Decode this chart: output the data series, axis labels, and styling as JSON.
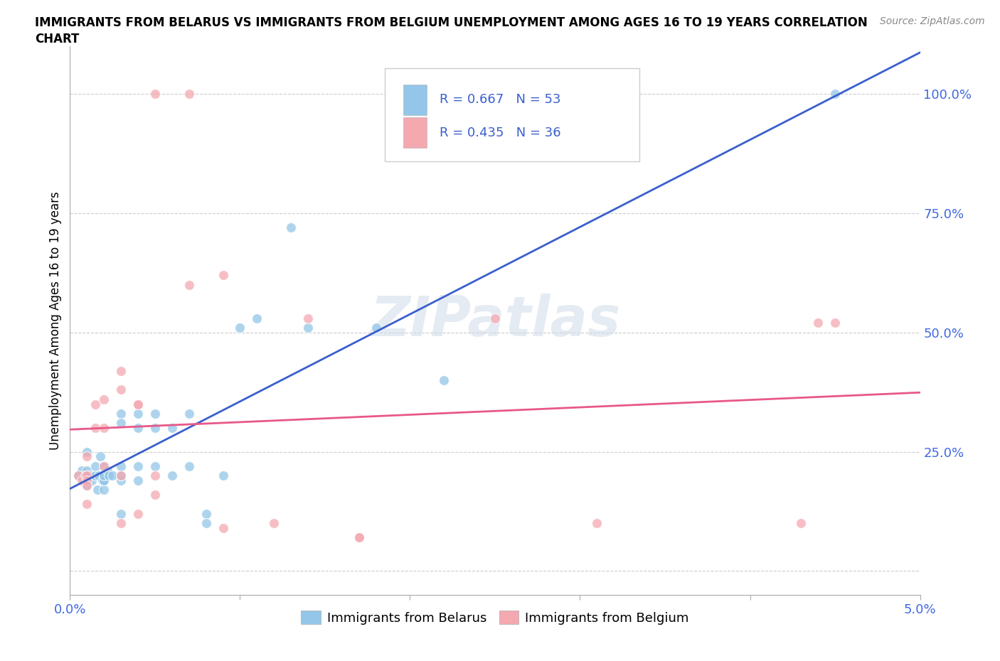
{
  "title_line1": "IMMIGRANTS FROM BELARUS VS IMMIGRANTS FROM BELGIUM UNEMPLOYMENT AMONG AGES 16 TO 19 YEARS CORRELATION",
  "title_line2": "CHART",
  "source": "Source: ZipAtlas.com",
  "ylabel": "Unemployment Among Ages 16 to 19 years",
  "xlim": [
    0.0,
    0.05
  ],
  "ylim": [
    -0.05,
    1.1
  ],
  "xticks": [
    0.0,
    0.01,
    0.02,
    0.03,
    0.04,
    0.05
  ],
  "xticklabels": [
    "0.0%",
    "",
    "",
    "",
    "",
    "5.0%"
  ],
  "ytick_positions": [
    0.0,
    0.25,
    0.5,
    0.75,
    1.0
  ],
  "ytick_labels": [
    "",
    "25.0%",
    "50.0%",
    "75.0%",
    "100.0%"
  ],
  "color_belarus": "#93c6e8",
  "color_belgium": "#f4a8b0",
  "line_color_belarus": "#3a5fcd",
  "line_color_belgium": "#e85888",
  "R_belarus": 0.667,
  "N_belarus": 53,
  "R_belgium": 0.435,
  "N_belgium": 36,
  "watermark": "ZIPatlas",
  "belarus_x": [
    0.0005,
    0.0007,
    0.0008,
    0.0009,
    0.001,
    0.001,
    0.001,
    0.001,
    0.001,
    0.0012,
    0.0013,
    0.0015,
    0.0015,
    0.0016,
    0.0017,
    0.0018,
    0.0019,
    0.002,
    0.002,
    0.002,
    0.002,
    0.002,
    0.002,
    0.0022,
    0.0023,
    0.0025,
    0.003,
    0.003,
    0.003,
    0.003,
    0.003,
    0.003,
    0.004,
    0.004,
    0.004,
    0.004,
    0.005,
    0.005,
    0.005,
    0.006,
    0.006,
    0.007,
    0.007,
    0.008,
    0.008,
    0.009,
    0.01,
    0.011,
    0.013,
    0.014,
    0.018,
    0.022,
    0.045
  ],
  "belarus_y": [
    0.2,
    0.21,
    0.19,
    0.2,
    0.2,
    0.19,
    0.18,
    0.21,
    0.25,
    0.2,
    0.19,
    0.22,
    0.2,
    0.17,
    0.2,
    0.24,
    0.19,
    0.19,
    0.22,
    0.2,
    0.17,
    0.19,
    0.2,
    0.21,
    0.2,
    0.2,
    0.33,
    0.31,
    0.22,
    0.19,
    0.2,
    0.12,
    0.33,
    0.3,
    0.22,
    0.19,
    0.33,
    0.3,
    0.22,
    0.3,
    0.2,
    0.33,
    0.22,
    0.12,
    0.1,
    0.2,
    0.51,
    0.53,
    0.72,
    0.51,
    0.51,
    0.4,
    1.0
  ],
  "belgium_x": [
    0.0005,
    0.0007,
    0.0009,
    0.001,
    0.001,
    0.001,
    0.001,
    0.001,
    0.0015,
    0.0015,
    0.002,
    0.002,
    0.002,
    0.003,
    0.003,
    0.003,
    0.003,
    0.004,
    0.004,
    0.004,
    0.005,
    0.005,
    0.005,
    0.007,
    0.007,
    0.009,
    0.009,
    0.012,
    0.014,
    0.017,
    0.017,
    0.025,
    0.031,
    0.043,
    0.044,
    0.045
  ],
  "belgium_y": [
    0.2,
    0.19,
    0.2,
    0.2,
    0.19,
    0.24,
    0.18,
    0.14,
    0.35,
    0.3,
    0.36,
    0.22,
    0.3,
    0.42,
    0.2,
    0.38,
    0.1,
    0.35,
    0.35,
    0.12,
    0.2,
    0.16,
    1.0,
    1.0,
    0.6,
    0.62,
    0.09,
    0.1,
    0.53,
    0.07,
    0.07,
    0.53,
    0.1,
    0.1,
    0.52,
    0.52
  ]
}
